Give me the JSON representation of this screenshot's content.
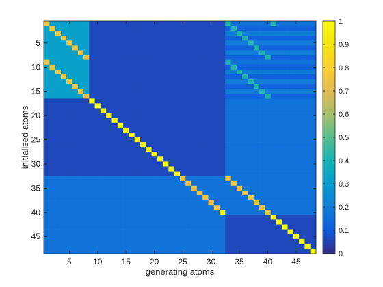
{
  "chart_data": {
    "type": "heatmap",
    "title": "",
    "xlabel": "generating atoms",
    "ylabel": "initialised atoms",
    "n_rows": 48,
    "n_cols": 48,
    "x_ticks": [
      5,
      10,
      15,
      20,
      25,
      30,
      35,
      40,
      45
    ],
    "y_ticks": [
      5,
      10,
      15,
      20,
      25,
      30,
      35,
      40,
      45
    ],
    "colorbar": {
      "range": [
        0,
        1
      ],
      "ticks": [
        0,
        0.1,
        0.2,
        0.3,
        0.4,
        0.5,
        0.6,
        0.7,
        0.8,
        0.9,
        1
      ],
      "colormap": "parula"
    },
    "block_values": [
      {
        "rows": [
          1,
          16
        ],
        "cols": [
          1,
          8
        ],
        "value": 0.32
      },
      {
        "rows": [
          1,
          16
        ],
        "cols": [
          9,
          32
        ],
        "value": 0.06
      },
      {
        "rows": [
          1,
          16
        ],
        "cols": [
          33,
          48
        ],
        "value": 0.17
      },
      {
        "rows": [
          17,
          32
        ],
        "cols": [
          1,
          32
        ],
        "value": 0.06
      },
      {
        "rows": [
          17,
          32
        ],
        "cols": [
          33,
          48
        ],
        "value": 0.17
      },
      {
        "rows": [
          33,
          40
        ],
        "cols": [
          1,
          32
        ],
        "value": 0.17
      },
      {
        "rows": [
          33,
          40
        ],
        "cols": [
          33,
          48
        ],
        "value": 0.17
      },
      {
        "rows": [
          41,
          48
        ],
        "cols": [
          1,
          32
        ],
        "value": 0.17
      },
      {
        "rows": [
          41,
          48
        ],
        "cols": [
          33,
          48
        ],
        "value": 0.06
      }
    ],
    "row_band_values": [
      {
        "rows": [
          2,
          2
        ],
        "cols": [
          33,
          48
        ],
        "value": 0.12
      },
      {
        "rows": [
          3,
          3
        ],
        "cols": [
          33,
          48
        ],
        "value": 0.2
      },
      {
        "rows": [
          4,
          4
        ],
        "cols": [
          33,
          48
        ],
        "value": 0.12
      },
      {
        "rows": [
          5,
          5
        ],
        "cols": [
          33,
          48
        ],
        "value": 0.2
      },
      {
        "rows": [
          6,
          6
        ],
        "cols": [
          33,
          48
        ],
        "value": 0.12
      },
      {
        "rows": [
          7,
          7
        ],
        "cols": [
          33,
          48
        ],
        "value": 0.2
      },
      {
        "rows": [
          8,
          8
        ],
        "cols": [
          33,
          48
        ],
        "value": 0.12
      },
      {
        "rows": [
          10,
          10
        ],
        "cols": [
          33,
          48
        ],
        "value": 0.12
      },
      {
        "rows": [
          11,
          11
        ],
        "cols": [
          33,
          48
        ],
        "value": 0.2
      },
      {
        "rows": [
          12,
          12
        ],
        "cols": [
          33,
          48
        ],
        "value": 0.12
      },
      {
        "rows": [
          13,
          13
        ],
        "cols": [
          33,
          48
        ],
        "value": 0.2
      },
      {
        "rows": [
          14,
          14
        ],
        "cols": [
          33,
          48
        ],
        "value": 0.12
      },
      {
        "rows": [
          15,
          15
        ],
        "cols": [
          33,
          48
        ],
        "value": 0.2
      },
      {
        "rows": [
          16,
          16
        ],
        "cols": [
          33,
          48
        ],
        "value": 0.12
      }
    ],
    "point_values": [
      {
        "row": 1,
        "col": 1,
        "value": 0.75
      },
      {
        "row": 2,
        "col": 2,
        "value": 0.75
      },
      {
        "row": 3,
        "col": 3,
        "value": 0.75
      },
      {
        "row": 4,
        "col": 4,
        "value": 0.75
      },
      {
        "row": 5,
        "col": 5,
        "value": 0.75
      },
      {
        "row": 6,
        "col": 6,
        "value": 0.75
      },
      {
        "row": 7,
        "col": 7,
        "value": 0.75
      },
      {
        "row": 8,
        "col": 8,
        "value": 0.75
      },
      {
        "row": 9,
        "col": 1,
        "value": 0.75
      },
      {
        "row": 10,
        "col": 2,
        "value": 0.75
      },
      {
        "row": 11,
        "col": 3,
        "value": 0.75
      },
      {
        "row": 12,
        "col": 4,
        "value": 0.75
      },
      {
        "row": 13,
        "col": 5,
        "value": 0.75
      },
      {
        "row": 14,
        "col": 6,
        "value": 0.75
      },
      {
        "row": 15,
        "col": 7,
        "value": 0.75
      },
      {
        "row": 16,
        "col": 8,
        "value": 0.75
      },
      {
        "row": 17,
        "col": 9,
        "value": 1
      },
      {
        "row": 18,
        "col": 10,
        "value": 1
      },
      {
        "row": 19,
        "col": 11,
        "value": 1
      },
      {
        "row": 20,
        "col": 12,
        "value": 1
      },
      {
        "row": 21,
        "col": 13,
        "value": 1
      },
      {
        "row": 22,
        "col": 14,
        "value": 1
      },
      {
        "row": 23,
        "col": 15,
        "value": 1
      },
      {
        "row": 24,
        "col": 16,
        "value": 1
      },
      {
        "row": 25,
        "col": 17,
        "value": 1
      },
      {
        "row": 26,
        "col": 18,
        "value": 1
      },
      {
        "row": 27,
        "col": 19,
        "value": 1
      },
      {
        "row": 28,
        "col": 20,
        "value": 1
      },
      {
        "row": 29,
        "col": 21,
        "value": 1
      },
      {
        "row": 30,
        "col": 22,
        "value": 1
      },
      {
        "row": 31,
        "col": 23,
        "value": 1
      },
      {
        "row": 32,
        "col": 24,
        "value": 1
      },
      {
        "row": 33,
        "col": 25,
        "value": 0.75
      },
      {
        "row": 34,
        "col": 26,
        "value": 0.75
      },
      {
        "row": 35,
        "col": 27,
        "value": 0.75
      },
      {
        "row": 36,
        "col": 28,
        "value": 0.75
      },
      {
        "row": 37,
        "col": 29,
        "value": 0.75
      },
      {
        "row": 38,
        "col": 30,
        "value": 0.75
      },
      {
        "row": 39,
        "col": 31,
        "value": 0.75
      },
      {
        "row": 40,
        "col": 32,
        "value": 1
      },
      {
        "row": 33,
        "col": 33,
        "value": 0.75
      },
      {
        "row": 34,
        "col": 34,
        "value": 0.75
      },
      {
        "row": 35,
        "col": 35,
        "value": 0.75
      },
      {
        "row": 36,
        "col": 36,
        "value": 0.75
      },
      {
        "row": 37,
        "col": 37,
        "value": 0.75
      },
      {
        "row": 38,
        "col": 38,
        "value": 0.75
      },
      {
        "row": 39,
        "col": 39,
        "value": 0.75
      },
      {
        "row": 40,
        "col": 40,
        "value": 0.75
      },
      {
        "row": 41,
        "col": 41,
        "value": 1
      },
      {
        "row": 42,
        "col": 42,
        "value": 1
      },
      {
        "row": 43,
        "col": 43,
        "value": 1
      },
      {
        "row": 44,
        "col": 44,
        "value": 1
      },
      {
        "row": 45,
        "col": 45,
        "value": 1
      },
      {
        "row": 46,
        "col": 46,
        "value": 1
      },
      {
        "row": 47,
        "col": 47,
        "value": 1
      },
      {
        "row": 48,
        "col": 48,
        "value": 1
      },
      {
        "row": 1,
        "col": 33,
        "value": 0.42
      },
      {
        "row": 1,
        "col": 41,
        "value": 0.42
      },
      {
        "row": 2,
        "col": 34,
        "value": 0.42
      },
      {
        "row": 3,
        "col": 35,
        "value": 0.42
      },
      {
        "row": 4,
        "col": 36,
        "value": 0.42
      },
      {
        "row": 5,
        "col": 37,
        "value": 0.42
      },
      {
        "row": 6,
        "col": 38,
        "value": 0.42
      },
      {
        "row": 7,
        "col": 39,
        "value": 0.42
      },
      {
        "row": 8,
        "col": 40,
        "value": 0.42
      },
      {
        "row": 9,
        "col": 33,
        "value": 0.42
      },
      {
        "row": 10,
        "col": 34,
        "value": 0.42
      },
      {
        "row": 11,
        "col": 35,
        "value": 0.42
      },
      {
        "row": 12,
        "col": 36,
        "value": 0.42
      },
      {
        "row": 13,
        "col": 37,
        "value": 0.42
      },
      {
        "row": 14,
        "col": 38,
        "value": 0.42
      },
      {
        "row": 15,
        "col": 39,
        "value": 0.42
      },
      {
        "row": 16,
        "col": 40,
        "value": 0.42
      }
    ]
  }
}
